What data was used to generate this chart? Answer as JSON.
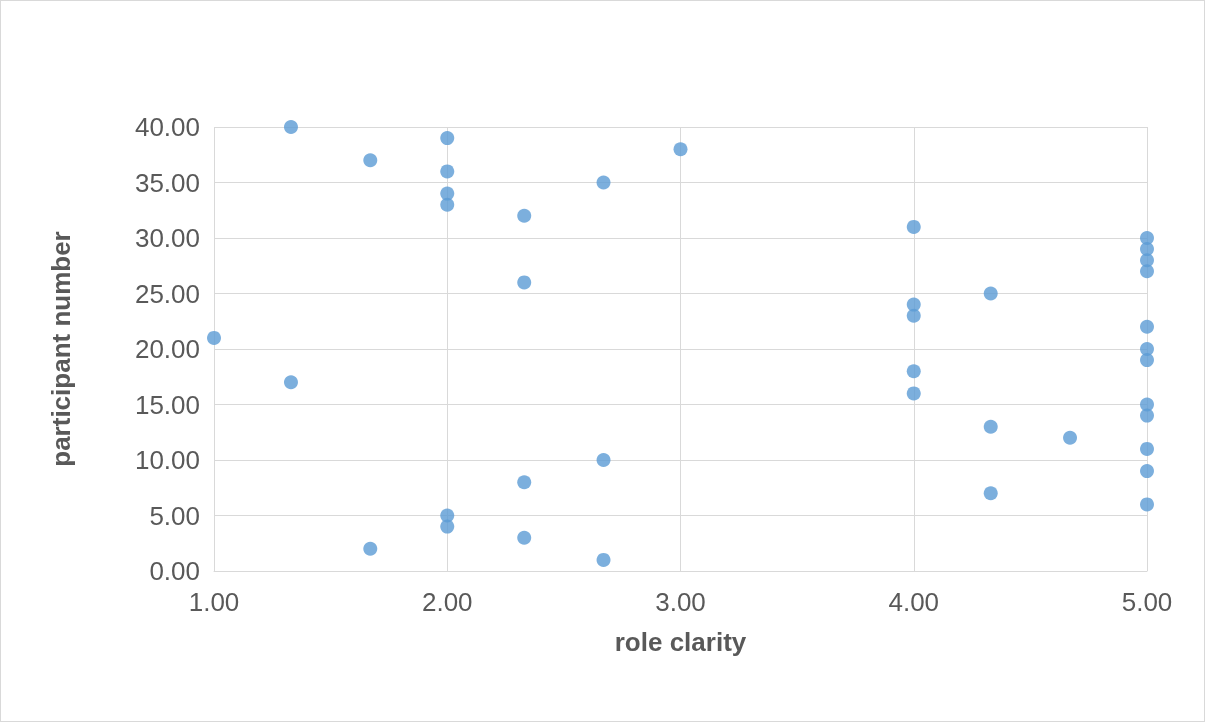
{
  "chart_data": {
    "type": "scatter",
    "xlabel": "role clarity",
    "ylabel": "participant number",
    "x": [
      2.67,
      1.67,
      2.33,
      2.0,
      2.0,
      5.0,
      4.33,
      2.33,
      5.0,
      2.67,
      5.0,
      4.67,
      4.33,
      5.0,
      5.0,
      4.0,
      1.33,
      4.0,
      5.0,
      5.0,
      1.0,
      5.0,
      4.0,
      4.0,
      4.33,
      2.33,
      5.0,
      5.0,
      5.0,
      5.0,
      4.0,
      2.33,
      2.0,
      2.0,
      2.67,
      2.0,
      1.67,
      3.0,
      2.0,
      1.33
    ],
    "values": [
      1,
      2,
      3,
      4,
      5,
      6,
      7,
      8,
      9,
      10,
      11,
      12,
      13,
      14,
      15,
      16,
      17,
      18,
      19,
      20,
      21,
      22,
      23,
      24,
      25,
      26,
      27,
      28,
      29,
      30,
      31,
      32,
      33,
      34,
      35,
      36,
      37,
      38,
      39,
      40
    ],
    "color": "#5b9bd5",
    "marker": "circle",
    "grid": true,
    "xlim": [
      1,
      5
    ],
    "xticks": [
      {
        "value": 1,
        "label": "1.00"
      },
      {
        "value": 2,
        "label": "2.00"
      },
      {
        "value": 3,
        "label": "3.00"
      },
      {
        "value": 4,
        "label": "4.00"
      },
      {
        "value": 5,
        "label": "5.00"
      }
    ],
    "ylim": [
      0,
      40
    ],
    "yticks": [
      {
        "value": 0,
        "label": "0.00"
      },
      {
        "value": 5,
        "label": "5.00"
      },
      {
        "value": 10,
        "label": "10.00"
      },
      {
        "value": 15,
        "label": "15.00"
      },
      {
        "value": 20,
        "label": "20.00"
      },
      {
        "value": 25,
        "label": "25.00"
      },
      {
        "value": 30,
        "label": "30.00"
      },
      {
        "value": 35,
        "label": "35.00"
      },
      {
        "value": 40,
        "label": "40.00"
      }
    ]
  }
}
